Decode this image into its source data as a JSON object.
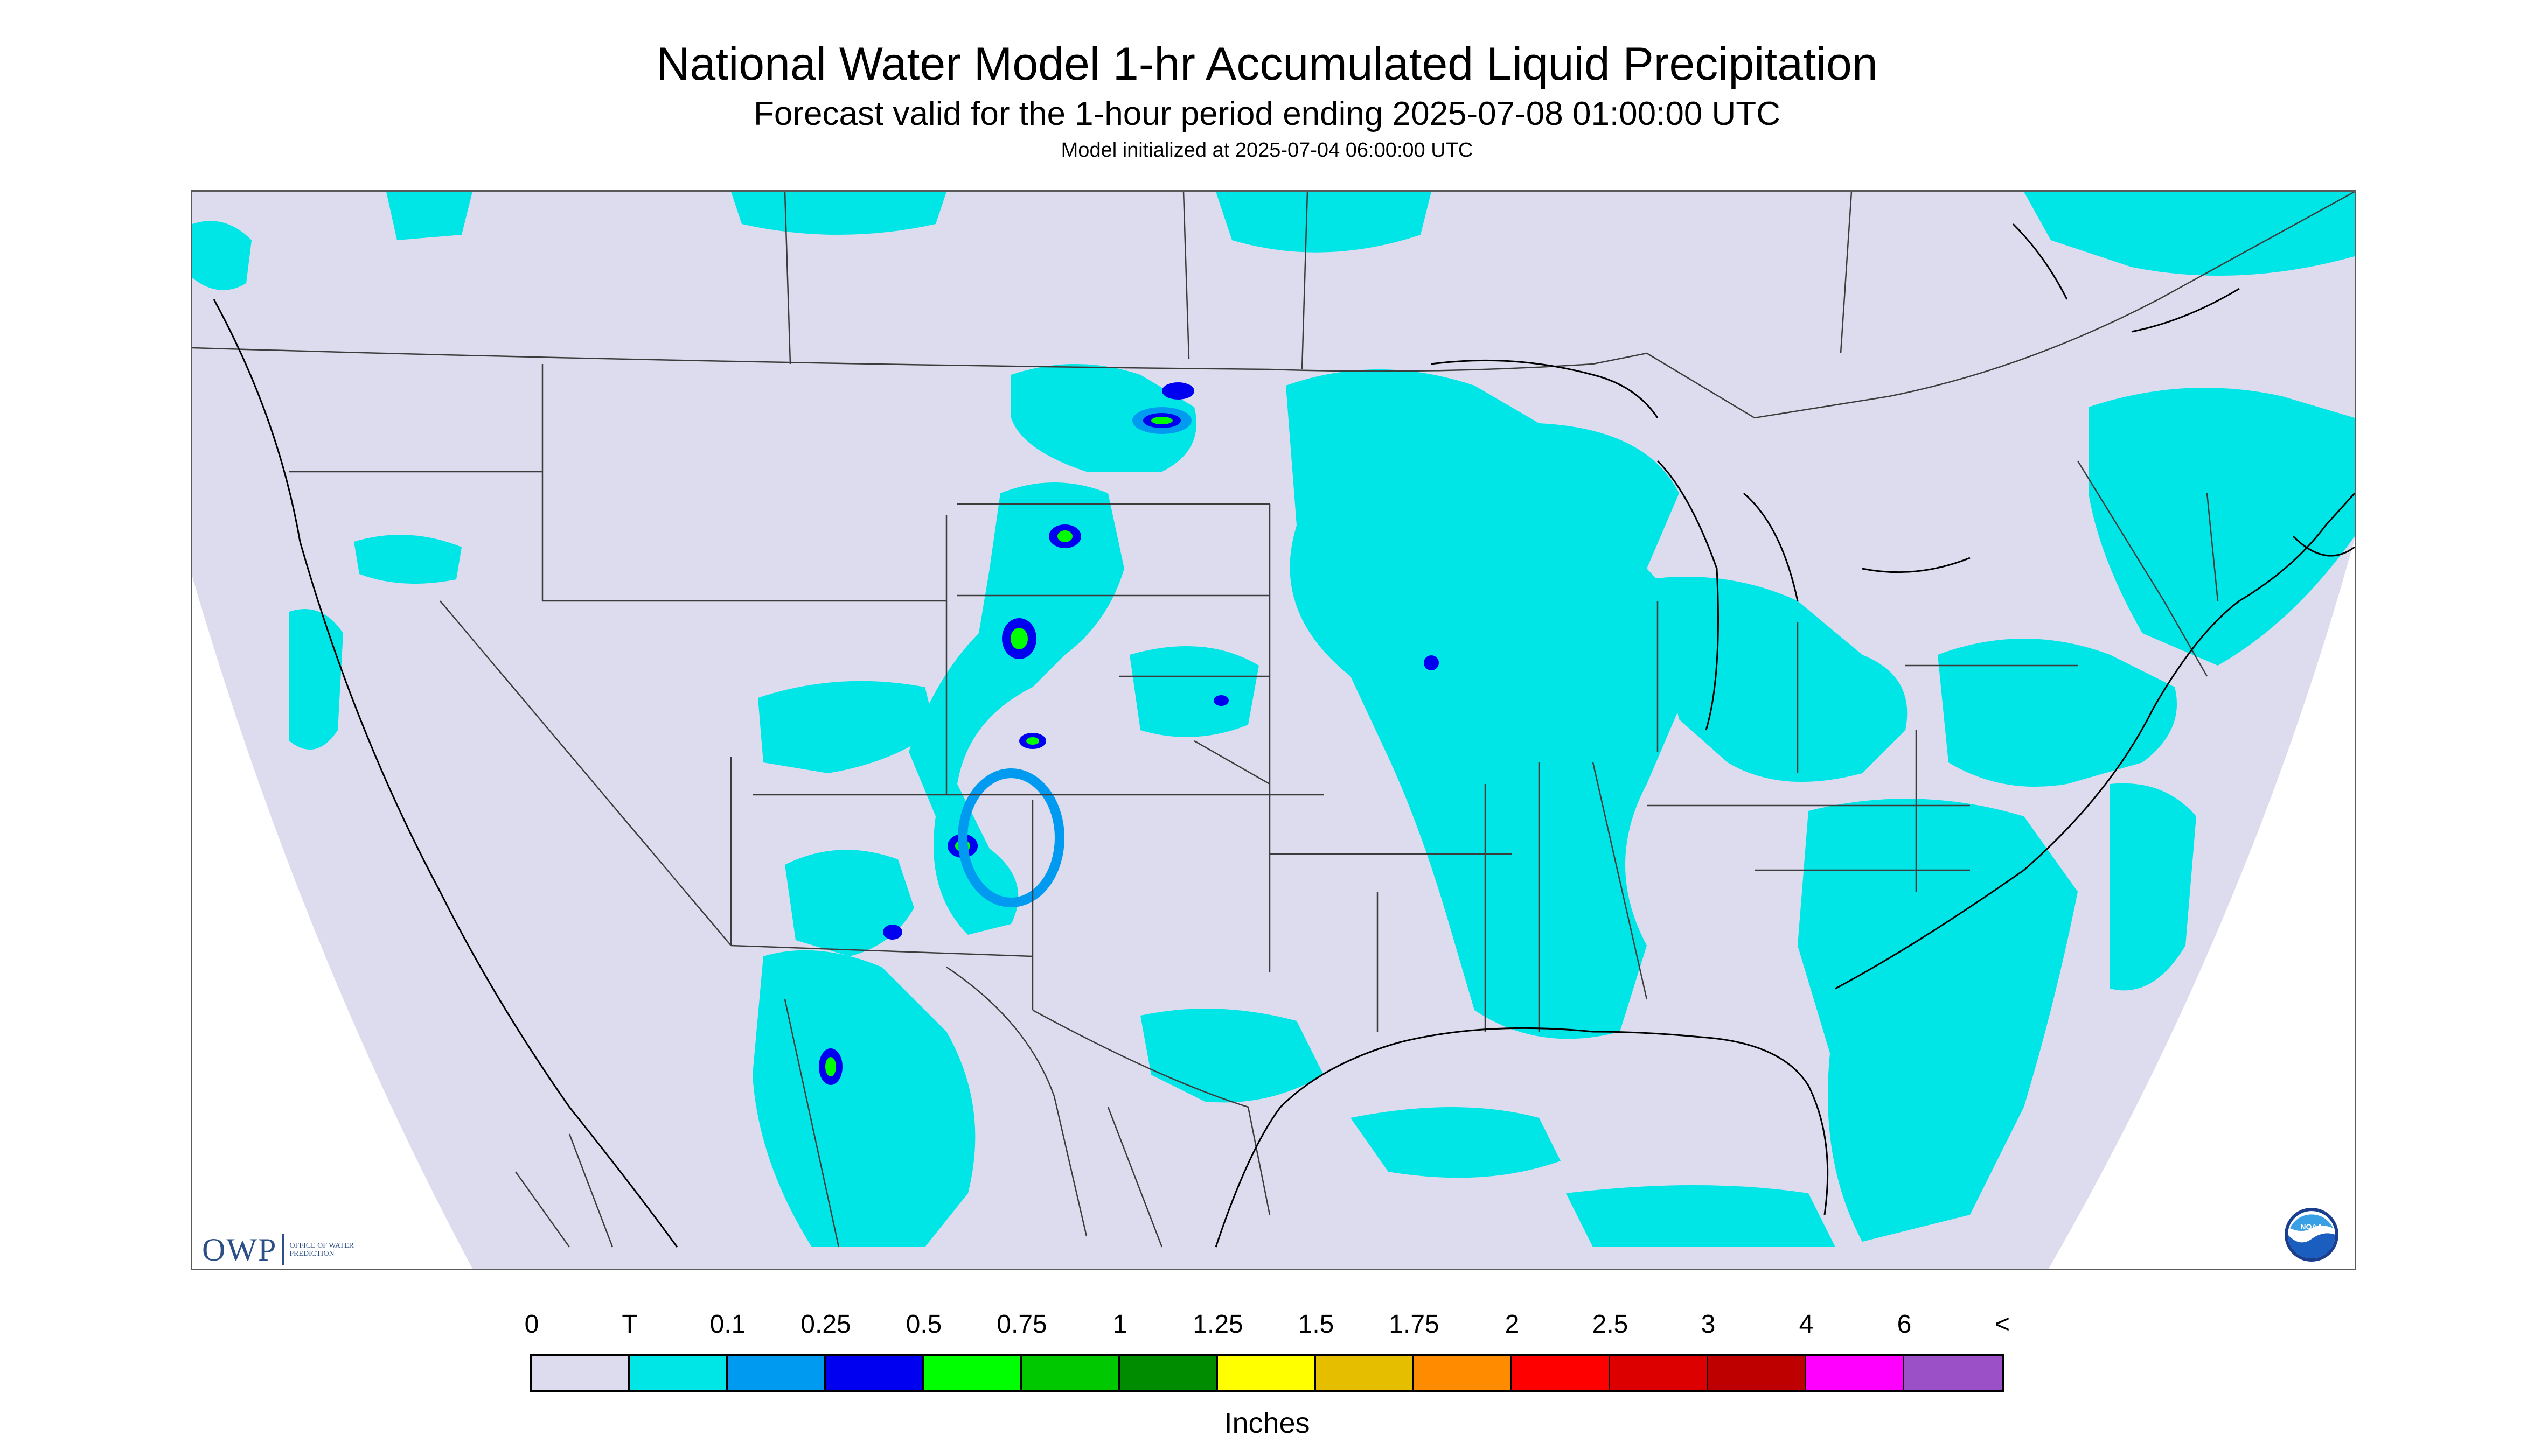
{
  "title": "National Water Model 1-hr Accumulated Liquid Precipitation",
  "subtitle": "Forecast valid for the 1-hour period ending 2025-07-08 01:00:00 UTC",
  "init_text": "Model initialized at 2025-07-04 06:00:00 UTC",
  "units": "Inches",
  "logos": {
    "owp": {
      "mark": "OWP",
      "name": "OFFICE OF WATER PREDICTION"
    },
    "noaa": {
      "mark": "NOAA"
    }
  },
  "legend": {
    "labels": [
      "0",
      "T",
      "0.1",
      "0.25",
      "0.5",
      "0.75",
      "1",
      "1.25",
      "1.5",
      "1.75",
      "2",
      "2.5",
      "3",
      "4",
      "6",
      "<"
    ],
    "colors": [
      "#dcdcee",
      "#00e5e5",
      "#009bf0",
      "#0000f0",
      "#00ff00",
      "#00c800",
      "#008c00",
      "#ffff00",
      "#e6be00",
      "#ff8c00",
      "#ff0000",
      "#dc0000",
      "#be0000",
      "#ff00ff",
      "#9b50c8"
    ]
  },
  "map": {
    "background_color": "#dcdcee",
    "projection_note": "Lambert conformal CONUS domain",
    "boundary_color": "#3c3c3c"
  }
}
